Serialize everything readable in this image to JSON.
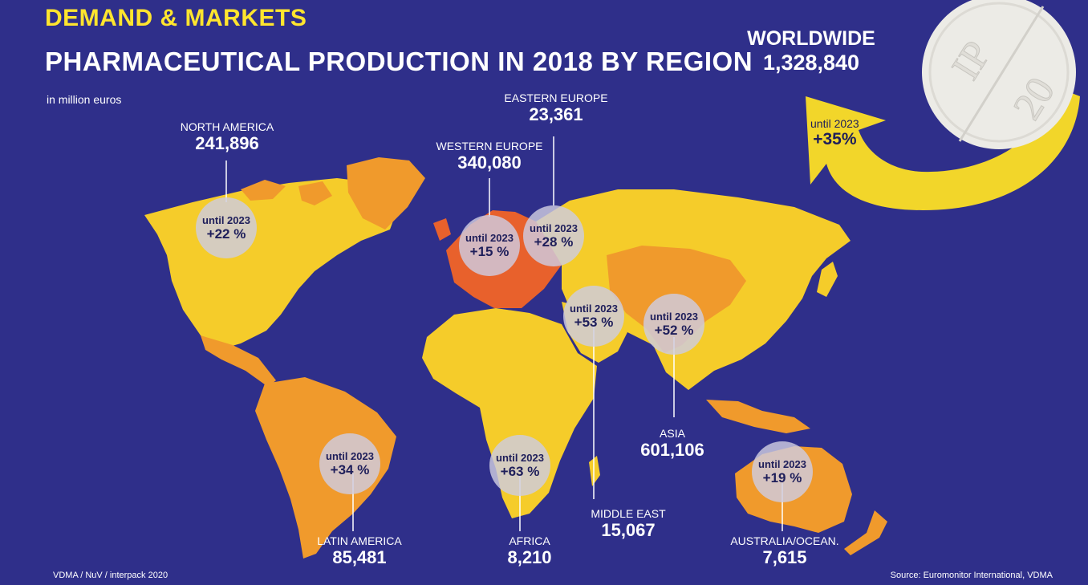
{
  "header": {
    "kicker": "DEMAND & MARKETS",
    "title": "PHARMACEUTICAL PRODUCTION IN 2018 BY REGION",
    "unit": "in million euros"
  },
  "pill_text": [
    "IP",
    "20"
  ],
  "colors": {
    "background": "#2f2f8a",
    "kicker": "#ffe52e",
    "land_light": "#f5cc2a",
    "land_orange": "#f09a2c",
    "western_europe": "#e8612c",
    "bubble": "#cecce0",
    "arrow": "#f2d62a"
  },
  "chart_data": {
    "type": "map",
    "title": "PHARMACEUTICAL PRODUCTION IN 2018 BY REGION",
    "unit": "in million euros",
    "growth_label": "until 2023",
    "worldwide": {
      "name": "WORLDWIDE",
      "value_text": "1,328,840",
      "value": 1328840,
      "growth_label": "until 2023",
      "growth_text": "+35%",
      "growth": 35
    },
    "regions": [
      {
        "name": "NORTH AMERICA",
        "value_text": "241,896",
        "value": 241896,
        "growth_text": "+22 %",
        "growth": 22
      },
      {
        "name": "WESTERN EUROPE",
        "value_text": "340,080",
        "value": 340080,
        "growth_text": "+15 %",
        "growth": 15
      },
      {
        "name": "EASTERN EUROPE",
        "value_text": "23,361",
        "value": 23361,
        "growth_text": "+28 %",
        "growth": 28
      },
      {
        "name": "MIDDLE EAST",
        "value_text": "15,067",
        "value": 15067,
        "growth_text": "+53 %",
        "growth": 53
      },
      {
        "name": "ASIA",
        "value_text": "601,106",
        "value": 601106,
        "growth_text": "+52 %",
        "growth": 52
      },
      {
        "name": "LATIN AMERICA",
        "value_text": "85,481",
        "value": 85481,
        "growth_text": "+34 %",
        "growth": 34
      },
      {
        "name": "AFRICA",
        "value_text": "8,210",
        "value": 8210,
        "growth_text": "+63 %",
        "growth": 63
      },
      {
        "name": "AUSTRALIA/OCEAN.",
        "value_text": "7,615",
        "value": 7615,
        "growth_text": "+19 %",
        "growth": 19
      }
    ]
  },
  "footer": {
    "credit": "VDMA / NuV / interpack 2020",
    "source": "Source: Euromonitor International, VDMA"
  }
}
